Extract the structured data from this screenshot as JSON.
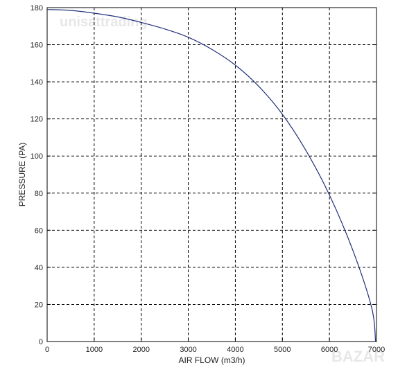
{
  "watermarks": {
    "top": "unisattrading",
    "bottom": "BAZAR"
  },
  "chart_data": {
    "type": "line",
    "title": "",
    "xlabel": "AIR FLOW (m3/h)",
    "ylabel": "PRESSURE (PA)",
    "xlim": [
      0,
      7000
    ],
    "ylim": [
      0,
      180
    ],
    "xticks": [
      0,
      1000,
      2000,
      3000,
      4000,
      5000,
      6000,
      7000
    ],
    "yticks": [
      0,
      20,
      40,
      60,
      80,
      100,
      120,
      140,
      160,
      180
    ],
    "grid": true,
    "grid_style": "dashed",
    "series": [
      {
        "name": "",
        "color": "#1f2f7a",
        "x": [
          0,
          500,
          1000,
          1500,
          2000,
          2500,
          3000,
          3500,
          4000,
          4500,
          5000,
          5500,
          6000,
          6500,
          6900,
          6980
        ],
        "y": [
          179,
          178.5,
          177,
          175,
          172,
          168.5,
          164,
          157.5,
          149,
          137.5,
          122.5,
          103,
          79,
          49,
          18,
          0
        ]
      }
    ]
  }
}
